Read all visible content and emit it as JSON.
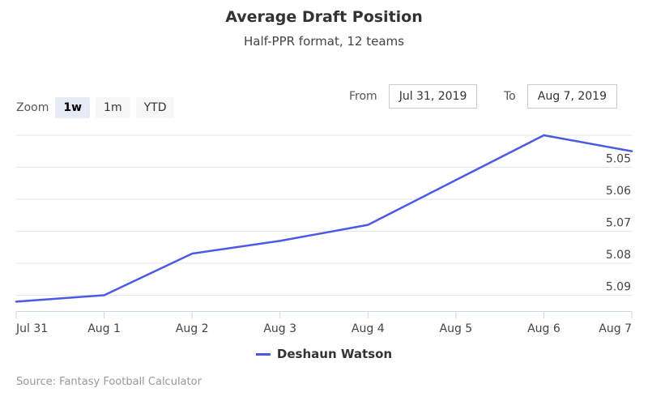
{
  "chart_data": {
    "type": "line",
    "title": "Average Draft Position",
    "subtitle": "Half-PPR format, 12 teams",
    "categories": [
      "Jul 31",
      "Aug 1",
      "Aug 2",
      "Aug 3",
      "Aug 4",
      "Aug 5",
      "Aug 6",
      "Aug 7"
    ],
    "series": [
      {
        "name": "Deshaun Watson",
        "color": "#4c59e4",
        "x": [
          "2019-07-31",
          "2019-08-01",
          "2019-08-02",
          "2019-08-03",
          "2019-08-04",
          "2019-08-05",
          "2019-08-06",
          "2019-08-07"
        ],
        "values": [
          5.092,
          5.09,
          5.077,
          5.073,
          5.068,
          5.054,
          5.04,
          5.045
        ]
      }
    ],
    "y_ticks": [
      "5.05",
      "5.06",
      "5.07",
      "5.08",
      "5.09"
    ],
    "y_axis_reversed": true,
    "ylim": [
      5.035,
      5.095
    ],
    "xlim": [
      "2019-07-31",
      "2019-08-07"
    ],
    "xlabel": "",
    "ylabel": "",
    "grid": true,
    "legend_position": "bottom-center"
  },
  "zoom": {
    "label": "Zoom",
    "buttons": [
      "1w",
      "1m",
      "YTD"
    ],
    "selected": "1w"
  },
  "range": {
    "from_label": "From",
    "from_value": "Jul 31, 2019",
    "to_label": "To",
    "to_value": "Aug 7, 2019"
  },
  "credits": "Source: Fantasy Football Calculator"
}
